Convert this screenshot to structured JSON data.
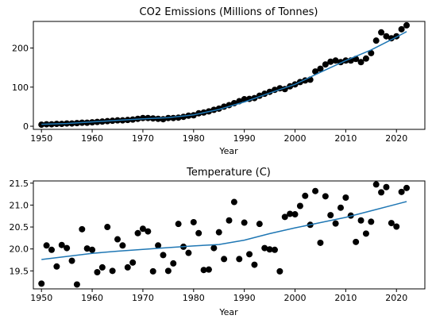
{
  "chart_data": [
    {
      "type": "scatter",
      "title": "CO2 Emissions (Millions of Tonnes)",
      "xlabel": "Year",
      "ylabel": "",
      "xlim": [
        1948.4,
        2025.6
      ],
      "ylim": [
        -8,
        268
      ],
      "xticks": [
        1950,
        1960,
        1970,
        1980,
        1990,
        2000,
        2010,
        2020
      ],
      "yticks": [
        0,
        100,
        200
      ],
      "grid": false,
      "series": [
        {
          "kind": "scatter",
          "color": "#000000",
          "points": [
            [
              1950,
              4
            ],
            [
              1951,
              5
            ],
            [
              1952,
              5
            ],
            [
              1953,
              6
            ],
            [
              1954,
              6
            ],
            [
              1955,
              7
            ],
            [
              1956,
              7
            ],
            [
              1957,
              8
            ],
            [
              1958,
              9
            ],
            [
              1959,
              9
            ],
            [
              1960,
              10
            ],
            [
              1961,
              11
            ],
            [
              1962,
              12
            ],
            [
              1963,
              13
            ],
            [
              1964,
              14
            ],
            [
              1965,
              15
            ],
            [
              1966,
              15
            ],
            [
              1967,
              16
            ],
            [
              1968,
              17
            ],
            [
              1969,
              19
            ],
            [
              1970,
              21
            ],
            [
              1971,
              21
            ],
            [
              1972,
              20
            ],
            [
              1973,
              19
            ],
            [
              1974,
              18
            ],
            [
              1975,
              21
            ],
            [
              1976,
              21
            ],
            [
              1977,
              22
            ],
            [
              1978,
              24
            ],
            [
              1979,
              27
            ],
            [
              1980,
              28
            ],
            [
              1981,
              33
            ],
            [
              1982,
              35
            ],
            [
              1983,
              38
            ],
            [
              1984,
              42
            ],
            [
              1985,
              45
            ],
            [
              1986,
              50
            ],
            [
              1987,
              54
            ],
            [
              1988,
              59
            ],
            [
              1989,
              64
            ],
            [
              1990,
              69
            ],
            [
              1991,
              70
            ],
            [
              1992,
              72
            ],
            [
              1993,
              78
            ],
            [
              1994,
              83
            ],
            [
              1995,
              88
            ],
            [
              1996,
              93
            ],
            [
              1997,
              97
            ],
            [
              1998,
              95
            ],
            [
              1999,
              102
            ],
            [
              2000,
              107
            ],
            [
              2001,
              113
            ],
            [
              2002,
              117
            ],
            [
              2003,
              119
            ],
            [
              2004,
              140
            ],
            [
              2005,
              147
            ],
            [
              2006,
              158
            ],
            [
              2007,
              165
            ],
            [
              2008,
              168
            ],
            [
              2009,
              164
            ],
            [
              2010,
              168
            ],
            [
              2011,
              168
            ],
            [
              2012,
              172
            ],
            [
              2013,
              164
            ],
            [
              2014,
              173
            ],
            [
              2015,
              187
            ],
            [
              2016,
              219
            ],
            [
              2017,
              240
            ],
            [
              2018,
              230
            ],
            [
              2019,
              225
            ],
            [
              2020,
              230
            ],
            [
              2021,
              248
            ],
            [
              2022,
              258
            ]
          ]
        },
        {
          "kind": "line",
          "color": "#1f77b4",
          "points": [
            [
              1950,
              5
            ],
            [
              1955,
              7
            ],
            [
              1960,
              11
            ],
            [
              1965,
              15
            ],
            [
              1970,
              19
            ],
            [
              1975,
              22
            ],
            [
              1980,
              29
            ],
            [
              1985,
              43
            ],
            [
              1990,
              62
            ],
            [
              1995,
              85
            ],
            [
              2000,
              107
            ],
            [
              2005,
              138
            ],
            [
              2010,
              168
            ],
            [
              2015,
              195
            ],
            [
              2020,
              228
            ],
            [
              2022,
              242
            ]
          ]
        }
      ]
    },
    {
      "type": "scatter",
      "title": "Temperature (C)",
      "xlabel": "Year",
      "ylabel": "",
      "xlim": [
        1948.4,
        2025.6
      ],
      "ylim": [
        19.09,
        21.55
      ],
      "xticks": [
        1950,
        1960,
        1970,
        1980,
        1990,
        2000,
        2010,
        2020
      ],
      "yticks": [
        19.5,
        20.0,
        20.5,
        21.0,
        21.5
      ],
      "ytick_labels": [
        "19.5",
        "20.0",
        "20.5",
        "21.0",
        "21.5"
      ],
      "grid": false,
      "series": [
        {
          "kind": "scatter",
          "color": "#000000",
          "points": [
            [
              1950,
              19.21
            ],
            [
              1951,
              20.08
            ],
            [
              1952,
              19.98
            ],
            [
              1953,
              19.6
            ],
            [
              1954,
              20.09
            ],
            [
              1955,
              20.02
            ],
            [
              1956,
              19.73
            ],
            [
              1957,
              19.19
            ],
            [
              1958,
              20.45
            ],
            [
              1959,
              20.01
            ],
            [
              1960,
              19.98
            ],
            [
              1961,
              19.47
            ],
            [
              1962,
              19.58
            ],
            [
              1963,
              20.5
            ],
            [
              1964,
              19.5
            ],
            [
              1965,
              20.22
            ],
            [
              1966,
              20.08
            ],
            [
              1967,
              19.58
            ],
            [
              1968,
              19.69
            ],
            [
              1969,
              20.36
            ],
            [
              1970,
              20.46
            ],
            [
              1971,
              20.4
            ],
            [
              1972,
              19.49
            ],
            [
              1973,
              20.08
            ],
            [
              1974,
              19.86
            ],
            [
              1975,
              19.5
            ],
            [
              1976,
              19.67
            ],
            [
              1977,
              20.57
            ],
            [
              1978,
              20.05
            ],
            [
              1979,
              19.91
            ],
            [
              1980,
              20.61
            ],
            [
              1981,
              20.36
            ],
            [
              1982,
              19.52
            ],
            [
              1983,
              19.53
            ],
            [
              1984,
              20.02
            ],
            [
              1985,
              20.38
            ],
            [
              1986,
              19.77
            ],
            [
              1987,
              20.65
            ],
            [
              1988,
              21.07
            ],
            [
              1989,
              19.77
            ],
            [
              1990,
              20.6
            ],
            [
              1991,
              19.88
            ],
            [
              1992,
              19.64
            ],
            [
              1993,
              20.57
            ],
            [
              1994,
              20.02
            ],
            [
              1995,
              19.99
            ],
            [
              1996,
              19.98
            ],
            [
              1997,
              19.49
            ],
            [
              1998,
              20.73
            ],
            [
              1999,
              20.8
            ],
            [
              2000,
              20.79
            ],
            [
              2001,
              20.98
            ],
            [
              2002,
              21.21
            ],
            [
              2003,
              20.55
            ],
            [
              2004,
              21.32
            ],
            [
              2005,
              20.14
            ],
            [
              2006,
              21.2
            ],
            [
              2007,
              20.77
            ],
            [
              2008,
              20.58
            ],
            [
              2009,
              20.94
            ],
            [
              2010,
              21.17
            ],
            [
              2011,
              20.76
            ],
            [
              2012,
              20.16
            ],
            [
              2013,
              20.65
            ],
            [
              2014,
              20.35
            ],
            [
              2015,
              20.62
            ],
            [
              2016,
              21.47
            ],
            [
              2017,
              21.29
            ],
            [
              2018,
              21.41
            ],
            [
              2019,
              20.59
            ],
            [
              2020,
              20.51
            ],
            [
              2021,
              21.3
            ],
            [
              2022,
              21.39
            ]
          ]
        },
        {
          "kind": "line",
          "color": "#1f77b4",
          "points": [
            [
              1950,
              19.76
            ],
            [
              1955,
              19.83
            ],
            [
              1960,
              19.9
            ],
            [
              1965,
              19.95
            ],
            [
              1970,
              19.99
            ],
            [
              1975,
              20.03
            ],
            [
              1980,
              20.07
            ],
            [
              1985,
              20.1
            ],
            [
              1990,
              20.2
            ],
            [
              1995,
              20.35
            ],
            [
              2000,
              20.48
            ],
            [
              2005,
              20.6
            ],
            [
              2010,
              20.72
            ],
            [
              2015,
              20.87
            ],
            [
              2020,
              21.02
            ],
            [
              2022,
              21.08
            ]
          ]
        }
      ]
    }
  ]
}
